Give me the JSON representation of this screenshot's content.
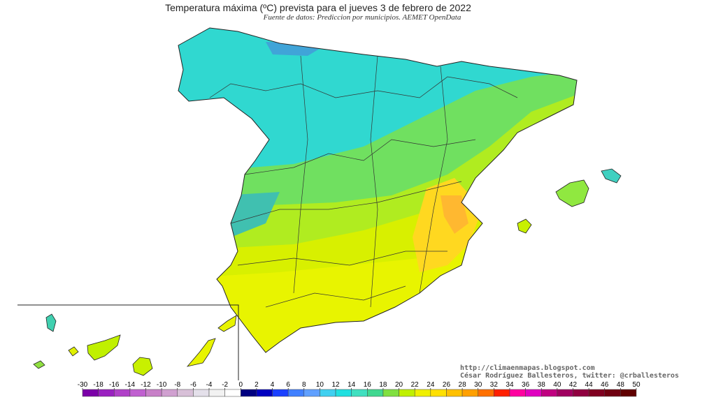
{
  "header": {
    "title": "Temperatura máxima (ºC) prevista para el jueves 3 de febrero de 2022",
    "subtitle": "Fuente de datos: Prediccion por municipios. AEMET OpenData"
  },
  "credits": [
    "http://climaenmapas.blogspot.com",
    "César Rodríguez Ballesteros, twitter: @crballesteros"
  ],
  "colorbar": {
    "ticks": [
      -30,
      -18,
      -16,
      -14,
      -12,
      -10,
      -8,
      -6,
      -4,
      -2,
      0,
      2,
      4,
      6,
      8,
      10,
      12,
      14,
      16,
      18,
      20,
      22,
      24,
      26,
      28,
      30,
      32,
      34,
      36,
      38,
      40,
      42,
      44,
      46,
      48,
      50
    ],
    "colors": [
      "#7b00a8",
      "#9a20c0",
      "#b040c8",
      "#c060d0",
      "#c880c8",
      "#d0a0d0",
      "#d8c0d8",
      "#e4e0ea",
      "#f2f2f2",
      "#ffffff",
      "#000080",
      "#0000c0",
      "#1a40ff",
      "#4080ff",
      "#60a0ff",
      "#40d0f0",
      "#20e0e0",
      "#40e0c0",
      "#40d890",
      "#80e040",
      "#c0f000",
      "#f0f000",
      "#ffe000",
      "#ffc000",
      "#ffa000",
      "#ff7000",
      "#ff2000",
      "#ff00a0",
      "#e000c0",
      "#c00080",
      "#a00060",
      "#900040",
      "#800020",
      "#700010",
      "#600000"
    ]
  }
}
